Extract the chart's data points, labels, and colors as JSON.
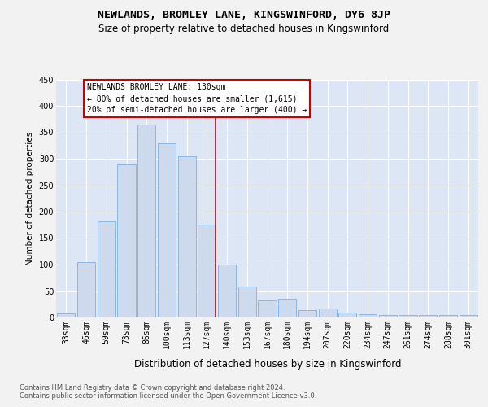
{
  "title": "NEWLANDS, BROMLEY LANE, KINGSWINFORD, DY6 8JP",
  "subtitle": "Size of property relative to detached houses in Kingswinford",
  "xlabel": "Distribution of detached houses by size in Kingswinford",
  "ylabel": "Number of detached properties",
  "categories": [
    "33sqm",
    "46sqm",
    "59sqm",
    "73sqm",
    "86sqm",
    "100sqm",
    "113sqm",
    "127sqm",
    "140sqm",
    "153sqm",
    "167sqm",
    "180sqm",
    "194sqm",
    "207sqm",
    "220sqm",
    "234sqm",
    "247sqm",
    "261sqm",
    "274sqm",
    "288sqm",
    "301sqm"
  ],
  "bar_values": [
    8,
    104,
    181,
    290,
    365,
    330,
    305,
    176,
    100,
    58,
    32,
    35,
    14,
    17,
    9,
    6,
    5,
    5,
    4,
    4,
    4
  ],
  "bar_color": "#cdd9ed",
  "bar_edge_color": "#6fa8dc",
  "vline_color": "#cc0000",
  "vline_pos": 7.43,
  "annotation_line1": "NEWLANDS BROMLEY LANE: 130sqm",
  "annotation_line2": "← 80% of detached houses are smaller (1,615)",
  "annotation_line3": "20% of semi-detached houses are larger (400) →",
  "ylim": [
    0,
    450
  ],
  "yticks": [
    0,
    50,
    100,
    150,
    200,
    250,
    300,
    350,
    400,
    450
  ],
  "footer1": "Contains HM Land Registry data © Crown copyright and database right 2024.",
  "footer2": "Contains public sector information licensed under the Open Government Licence v3.0.",
  "plot_bg_color": "#dce6f5",
  "grid_color": "#ffffff",
  "fig_bg_color": "#f2f2f2",
  "title_fontsize": 9.5,
  "subtitle_fontsize": 8.5,
  "xlabel_fontsize": 8.5,
  "ylabel_fontsize": 7.5,
  "tick_fontsize": 7,
  "ann_fontsize": 7,
  "footer_fontsize": 6
}
